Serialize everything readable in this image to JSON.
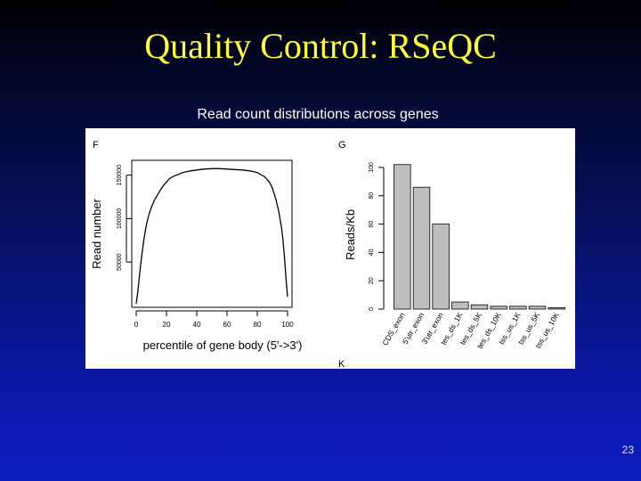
{
  "slide": {
    "title": "Quality Control: RSeQC",
    "subtitle": "Read count distributions across genes",
    "page_number": "23"
  },
  "chart_data": [
    {
      "panel_letter": "F",
      "type": "line",
      "xlabel": "percentile of gene body (5'->3')",
      "ylabel": "Read number",
      "xlim": [
        0,
        100
      ],
      "ylim": [
        0,
        165000
      ],
      "xticks": [
        0,
        20,
        40,
        60,
        80,
        100
      ],
      "yticks": [
        50000,
        100000,
        150000
      ],
      "ytick_labels": [
        "50000",
        "100000",
        "150000"
      ],
      "x": [
        0,
        1,
        2,
        3,
        4,
        5,
        6,
        7,
        8,
        9,
        10,
        12,
        14,
        16,
        18,
        20,
        22,
        25,
        28,
        30,
        33,
        36,
        40,
        45,
        50,
        55,
        60,
        65,
        70,
        75,
        80,
        85,
        88,
        90,
        92,
        94,
        96,
        97,
        98,
        99,
        100
      ],
      "y": [
        2000,
        15000,
        32000,
        48000,
        62000,
        75000,
        86000,
        95000,
        102000,
        108000,
        113000,
        121000,
        127000,
        133000,
        138000,
        142000,
        146000,
        149000,
        151000,
        152500,
        154000,
        155000,
        156000,
        157000,
        157500,
        157500,
        157000,
        156500,
        156000,
        155000,
        153000,
        148000,
        142000,
        135000,
        124000,
        110000,
        90000,
        75000,
        55000,
        30000,
        10000
      ]
    },
    {
      "panel_letter": "G",
      "type": "bar",
      "ylabel": "Reads/Kb",
      "ylim": [
        0,
        105
      ],
      "yticks": [
        0,
        20,
        40,
        60,
        80,
        100
      ],
      "categories": [
        "CDS_exon",
        "5'utr_exon",
        "3'utr_exon",
        "tes_ds_1K",
        "tes_ds_5K",
        "tes_ds_10K",
        "tss_us_1K",
        "tss_us_5K",
        "tss_us_10K"
      ],
      "values": [
        102,
        86,
        60,
        5,
        3,
        2,
        2,
        2,
        1
      ]
    }
  ],
  "extra_panel_letter": "K",
  "colors": {
    "title": "#ffff33",
    "bar_fill": "#bebebe",
    "line": "#000000"
  }
}
